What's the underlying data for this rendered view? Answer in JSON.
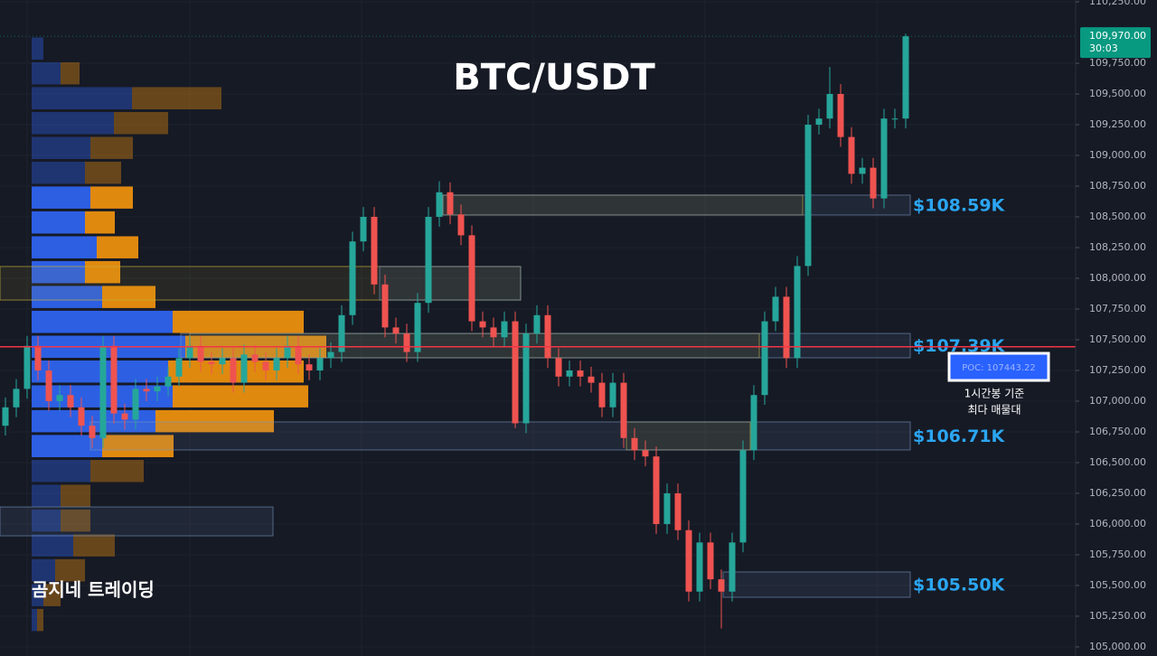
{
  "chart_data": {
    "type": "candlestick",
    "title": "BTC/USDT",
    "watermark": "곰지네 트레이딩",
    "ylim": [
      104926,
      110265
    ],
    "yticks": [
      {
        "value": 105000,
        "label": "105,000.00"
      },
      {
        "value": 105250,
        "label": "105,250.00"
      },
      {
        "value": 105500,
        "label": "105,500.00"
      },
      {
        "value": 105750,
        "label": "105,750.00"
      },
      {
        "value": 106000,
        "label": "106,000.00"
      },
      {
        "value": 106250,
        "label": "106,250.00"
      },
      {
        "value": 106500,
        "label": "106,500.00"
      },
      {
        "value": 106750,
        "label": "106,750.00"
      },
      {
        "value": 107000,
        "label": "107,000.00"
      },
      {
        "value": 107250,
        "label": "107,250.00"
      },
      {
        "value": 107500,
        "label": "107,500.00"
      },
      {
        "value": 107750,
        "label": "107,750.00"
      },
      {
        "value": 108000,
        "label": "108,000.00"
      },
      {
        "value": 108250,
        "label": "108,250.00"
      },
      {
        "value": 108500,
        "label": "108,500.00"
      },
      {
        "value": 108750,
        "label": "108,750.00"
      },
      {
        "value": 109000,
        "label": "109,000.00"
      },
      {
        "value": 109250,
        "label": "109,250.00"
      },
      {
        "value": 109500,
        "label": "109,500.00"
      },
      {
        "value": 109750,
        "label": "109,750.00"
      },
      {
        "value": 110250,
        "label": "110,250.00"
      }
    ],
    "grid": true,
    "up_color": "#26a69a",
    "down_color": "#ef5350",
    "open": [
      106800,
      106950,
      107100,
      107450,
      107250,
      107000,
      107050,
      106950,
      106800,
      106700,
      107450,
      106900,
      106850,
      107100,
      107080,
      107120,
      107200,
      107350,
      107450,
      107320,
      107300,
      107350,
      107150,
      107380,
      107320,
      107250,
      107350,
      107450,
      107300,
      107250,
      107350,
      107400,
      107700,
      108300,
      108500,
      107950,
      107600,
      107550,
      107400,
      107800,
      108500,
      108700,
      108520,
      108350,
      107650,
      107600,
      107520,
      107650,
      106820,
      107550,
      107700,
      107350,
      107200,
      107250,
      107200,
      107150,
      106950,
      107150,
      106700,
      106600,
      106550,
      106000,
      106250,
      105950,
      105450,
      105850,
      105550,
      105450,
      105850,
      106600,
      107050,
      107650,
      107850,
      107350,
      108100,
      109250,
      109300,
      109500,
      109150,
      108850,
      108900,
      108650,
      109300,
      109300
    ],
    "high": [
      107030,
      107180,
      107530,
      107530,
      107330,
      107130,
      107130,
      107030,
      106880,
      107530,
      107530,
      106980,
      107180,
      107180,
      107200,
      107280,
      107430,
      107530,
      107530,
      107400,
      107430,
      107430,
      107460,
      107460,
      107400,
      107430,
      107530,
      107530,
      107380,
      107430,
      107480,
      107780,
      108380,
      108580,
      108580,
      108030,
      107680,
      107630,
      107880,
      108580,
      108790,
      108780,
      108600,
      108430,
      107730,
      107680,
      107730,
      107730,
      107630,
      107780,
      107780,
      107430,
      107330,
      107330,
      107280,
      107230,
      107230,
      107230,
      106780,
      106680,
      106630,
      106330,
      106330,
      106030,
      105930,
      105930,
      105630,
      105930,
      106680,
      107130,
      107730,
      107930,
      107930,
      108180,
      109330,
      109380,
      109720,
      109580,
      109230,
      108980,
      108980,
      109380,
      109380,
      109990
    ],
    "low": [
      106720,
      106870,
      107020,
      107170,
      106920,
      106920,
      106870,
      106720,
      106620,
      106620,
      106820,
      106770,
      106770,
      107000,
      107000,
      107040,
      107120,
      107270,
      107240,
      107220,
      107220,
      107070,
      107070,
      107240,
      107170,
      107170,
      107270,
      107220,
      107170,
      107170,
      107270,
      107320,
      107620,
      108220,
      107870,
      107520,
      107470,
      107320,
      107320,
      107720,
      108420,
      108440,
      108270,
      107570,
      107520,
      107440,
      107440,
      106780,
      106740,
      107470,
      107270,
      107120,
      107120,
      107120,
      107070,
      106870,
      106870,
      106620,
      106520,
      106470,
      105920,
      105920,
      105870,
      105370,
      105370,
      105470,
      105150,
      105370,
      105770,
      106520,
      106970,
      107570,
      107270,
      107270,
      108020,
      109170,
      109220,
      109070,
      108770,
      108770,
      108570,
      108570,
      109220,
      109220
    ],
    "close": [
      106950,
      107100,
      107450,
      107250,
      107000,
      107050,
      106950,
      106800,
      106700,
      107450,
      106900,
      106850,
      107100,
      107080,
      107120,
      107200,
      107350,
      107450,
      107320,
      107300,
      107350,
      107150,
      107380,
      107320,
      107250,
      107350,
      107450,
      107300,
      107250,
      107350,
      107400,
      107700,
      108300,
      108500,
      107950,
      107600,
      107550,
      107400,
      107800,
      108500,
      108700,
      108520,
      108350,
      107650,
      107600,
      107520,
      107650,
      106820,
      107550,
      107700,
      107350,
      107200,
      107250,
      107200,
      107150,
      106950,
      107150,
      106700,
      106600,
      106550,
      106000,
      106250,
      105950,
      105450,
      105850,
      105550,
      105450,
      105850,
      106600,
      107050,
      107650,
      107850,
      107350,
      108100,
      109250,
      109300,
      109500,
      109150,
      108850,
      108900,
      108650,
      109300,
      109300,
      109970
    ],
    "last_price": {
      "value": 109970,
      "label": "109,970.00",
      "countdown": "30:03",
      "color": "#089981"
    },
    "volume_profile": {
      "price_bins": [
        109971,
        109769,
        109567,
        109364,
        109162,
        108960,
        108758,
        108556,
        108353,
        108151,
        107949,
        107747,
        107544,
        107342,
        107140,
        106938,
        106736,
        106533,
        106331,
        106129,
        105927,
        105725,
        105522,
        105320,
        105118
      ],
      "buy": [
        13,
        32,
        111,
        91,
        65,
        59,
        65,
        59,
        72,
        59,
        78,
        156,
        170,
        151,
        156,
        137,
        78,
        65,
        32,
        32,
        46,
        26,
        13,
        6
      ],
      "sell": [
        0,
        21,
        99,
        60,
        47,
        40,
        47,
        33,
        46,
        39,
        59,
        145,
        156,
        150,
        150,
        131,
        79,
        59,
        33,
        33,
        46,
        33,
        19,
        7
      ],
      "buy_color": "#2d5fe3",
      "sell_color": "#e0890f",
      "value_area": [
        106533,
        108758
      ]
    },
    "poc": {
      "value": 107443.22,
      "label": "POC: 107443.22",
      "color": "#f23645"
    },
    "annotation": [
      "1시간봉 기준",
      "최다 매물대"
    ],
    "zones": [
      {
        "label": "$108.59K",
        "top": 108677,
        "bottom": 108515
      },
      {
        "label": "$107.39K",
        "top": 107551,
        "bottom": 107353
      },
      {
        "label": "$106.71K",
        "top": 106831,
        "bottom": 106603
      },
      {
        "label": "$105.50K",
        "top": 105610,
        "bottom": 105404
      },
      {
        "top": 108096,
        "bottom": 107823
      },
      {
        "top": 106139,
        "bottom": 105904
      }
    ]
  }
}
